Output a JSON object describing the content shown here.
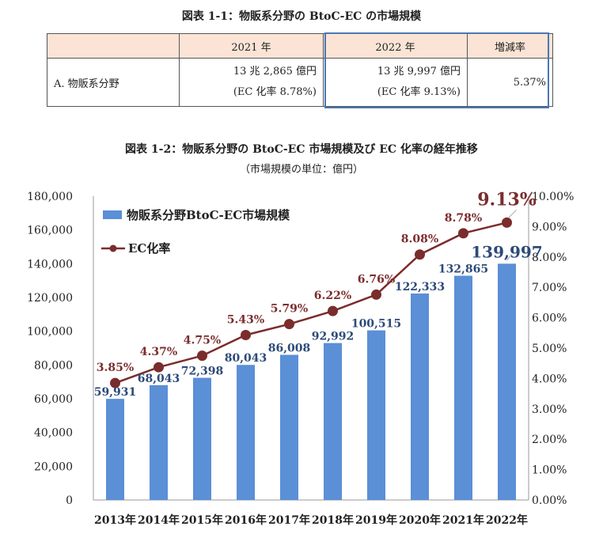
{
  "table": {
    "title": "図表 1-1：物販系分野の BtoC-EC の市場規模",
    "headers": [
      "",
      "2021 年",
      "2022 年",
      "増減率"
    ],
    "row_label": "A. 物販系分野",
    "v2021_amount": "13 兆 2,865 億円",
    "v2021_rate": "(EC 化率 8.78%)",
    "v2022_amount": "13 兆 9,997 億円",
    "v2022_rate": "(EC 化率 9.13%)",
    "change": "5.37%"
  },
  "chart_title": "図表 1-2：物販系分野の BtoC-EC 市場規模及び EC 化率の経年推移",
  "chart_subtitle": "（市場規模の単位：億円）",
  "colors": {
    "bar": "#5b8fd6",
    "line": "#7b2c2c",
    "bar_label": "#2c4a78",
    "rate_label": "#7b2c2c",
    "highlight": "#4a78b4",
    "header_bg": "#fbe4d5"
  },
  "chart_data": {
    "type": "bar",
    "categories": [
      "2013年",
      "2014年",
      "2015年",
      "2016年",
      "2017年",
      "2018年",
      "2019年",
      "2020年",
      "2021年",
      "2022年"
    ],
    "series": [
      {
        "name": "物販系分野BtoC-EC市場規模",
        "type": "bar",
        "axis": "left",
        "values": [
          59931,
          68043,
          72398,
          80043,
          86008,
          92992,
          100515,
          122333,
          132865,
          139997
        ],
        "labels": [
          "59,931",
          "68,043",
          "72,398",
          "80,043",
          "86,008",
          "92,992",
          "100,515",
          "122,333",
          "132,865",
          "139,997"
        ]
      },
      {
        "name": "EC化率",
        "type": "line",
        "axis": "right",
        "values": [
          3.85,
          4.37,
          4.75,
          5.43,
          5.79,
          6.22,
          6.76,
          8.08,
          8.78,
          9.13
        ],
        "labels": [
          "3.85%",
          "4.37%",
          "4.75%",
          "5.43%",
          "5.79%",
          "6.22%",
          "6.76%",
          "8.08%",
          "8.78%",
          "9.13%"
        ]
      }
    ],
    "y_left": {
      "min": 0,
      "max": 180000,
      "ticks": [
        "0",
        "20,000",
        "40,000",
        "60,000",
        "80,000",
        "100,000",
        "120,000",
        "140,000",
        "160,000",
        "180,000"
      ]
    },
    "y_right": {
      "min": 0,
      "max": 10,
      "ticks": [
        "0.00%",
        "1.00%",
        "2.00%",
        "3.00%",
        "4.00%",
        "5.00%",
        "6.00%",
        "7.00%",
        "8.00%",
        "9.00%",
        "10.00%"
      ]
    },
    "legend": "top-left",
    "grid": false
  }
}
